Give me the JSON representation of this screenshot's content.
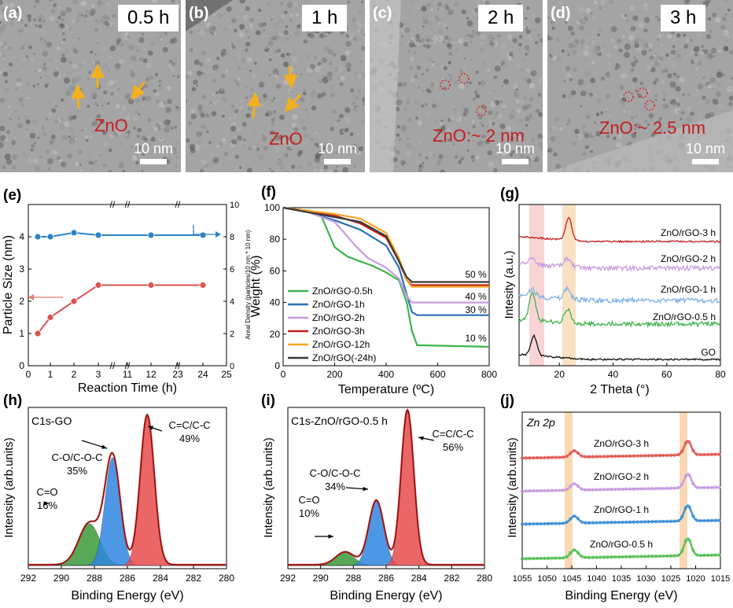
{
  "tem": [
    {
      "label": "(a)",
      "time": "0.5 h",
      "annotation": "ZnO",
      "scale": "10 nm"
    },
    {
      "label": "(b)",
      "time": "1 h",
      "annotation": "ZnO",
      "scale": "10 nm"
    },
    {
      "label": "(c)",
      "time": "2 h",
      "annotation": "ZnO:~ 2 nm",
      "scale": "10 nm"
    },
    {
      "label": "(d)",
      "time": "3 h",
      "annotation": "ZnO:~ 2.5 nm",
      "scale": "10 nm"
    }
  ],
  "chart_data": [
    {
      "id": "e",
      "type": "scatter",
      "label": "(e)",
      "xlabel": "Reaction Time (h)",
      "ylabel": "Particle Size (nm)",
      "ylabel2": "Areal Density (particles/10 nm * 10 nm)",
      "xticks": [
        "0",
        "1",
        "2",
        "3",
        "11",
        "12",
        "23",
        "24",
        "25"
      ],
      "yticks": [
        "0",
        "1",
        "2",
        "3",
        "4"
      ],
      "y2ticks": [
        "0",
        "2",
        "4",
        "6",
        "8",
        "10"
      ],
      "series": [
        {
          "name": "Particle Size",
          "color": "#d9534f",
          "x": [
            "0.5",
            "1",
            "2",
            "3",
            "12",
            "24"
          ],
          "y": [
            1.0,
            1.5,
            2.0,
            2.5,
            2.5,
            2.5
          ]
        },
        {
          "name": "Areal Density",
          "color": "#2c84c6",
          "x": [
            "0.5",
            "1",
            "2",
            "3",
            "12",
            "24"
          ],
          "y": [
            8.0,
            8.0,
            8.25,
            8.1,
            8.1,
            8.1
          ]
        }
      ]
    },
    {
      "id": "f",
      "type": "line",
      "label": "(f)",
      "xlabel": "Temperature (ºC)",
      "ylabel": "Weight (%)",
      "xlim": [
        0,
        800
      ],
      "ylim": [
        0,
        100
      ],
      "xticks": [
        "0",
        "200",
        "400",
        "600",
        "800"
      ],
      "yticks": [
        "0",
        "20",
        "40",
        "60",
        "80",
        "100"
      ],
      "series": [
        {
          "name": "ZnO/rGO-0.5h",
          "color": "#3cb44b",
          "x": [
            0,
            100,
            150,
            200,
            250,
            300,
            350,
            400,
            450,
            480,
            500,
            520,
            800
          ],
          "y": [
            100,
            97,
            94,
            75,
            69,
            66,
            63,
            59,
            54,
            40,
            22,
            13,
            12
          ]
        },
        {
          "name": "ZnO/rGO-1h",
          "color": "#2a6fb5",
          "x": [
            0,
            100,
            200,
            300,
            400,
            450,
            480,
            500,
            520,
            800
          ],
          "y": [
            100,
            97,
            92,
            86,
            76,
            62,
            45,
            34,
            32,
            32
          ]
        },
        {
          "name": "ZnO/rGO-2h",
          "color": "#c89be0",
          "x": [
            0,
            100,
            200,
            280,
            330,
            400,
            450,
            480,
            500,
            800
          ],
          "y": [
            100,
            97,
            91,
            76,
            68,
            62,
            55,
            44,
            40,
            40
          ]
        },
        {
          "name": "ZnO/rGO-3h",
          "color": "#c0201e",
          "x": [
            0,
            100,
            200,
            300,
            400,
            450,
            480,
            500,
            800
          ],
          "y": [
            100,
            98,
            95,
            90,
            81,
            66,
            54,
            51,
            51
          ]
        },
        {
          "name": "ZnO/rGO-12h",
          "color": "#f5a623",
          "x": [
            0,
            100,
            200,
            300,
            400,
            450,
            480,
            500,
            800
          ],
          "y": [
            100,
            98,
            96,
            93,
            84,
            68,
            54,
            50,
            50
          ]
        },
        {
          "name": "ZnO/rGO(-24h)",
          "color": "#3a3a3a",
          "x": [
            0,
            100,
            200,
            300,
            400,
            450,
            480,
            500,
            800
          ],
          "y": [
            100,
            97,
            94,
            91,
            82,
            66,
            56,
            53,
            53
          ]
        }
      ],
      "annotations": [
        "50 %",
        "40 %",
        "30 %",
        "10 %"
      ]
    },
    {
      "id": "g",
      "type": "line",
      "label": "(g)",
      "xlabel": "2 Theta (°)",
      "ylabel": "Intesity (a.u.)",
      "xlim": [
        5,
        80
      ],
      "xticks": [
        "20",
        "40",
        "60",
        "80"
      ],
      "series": [
        {
          "name": "ZnO/rGO-3 h",
          "color": "#c0201e",
          "peaks": [
            [
              23.5,
              1.0
            ]
          ]
        },
        {
          "name": "ZnO/rGO-2 h",
          "color": "#c89be0",
          "peaks": [
            [
              10,
              0.3
            ],
            [
              23,
              0.4
            ]
          ]
        },
        {
          "name": "ZnO/rGO-1 h",
          "color": "#7fb2e5",
          "peaks": [
            [
              10,
              0.35
            ],
            [
              23,
              0.5
            ]
          ]
        },
        {
          "name": "ZnO/rGO-0.5 h",
          "color": "#3cb44b",
          "peaks": [
            [
              10,
              1.2
            ],
            [
              23,
              0.6
            ]
          ]
        },
        {
          "name": "GO",
          "color": "#111111",
          "peaks": [
            [
              10.5,
              0.9
            ]
          ]
        }
      ]
    },
    {
      "id": "h",
      "type": "area",
      "label": "(h)",
      "title": "C1s-GO",
      "xlabel": "Binding Energy (eV)",
      "ylabel": "Intensity (arb.units)",
      "xlim": [
        292,
        280
      ],
      "xticks": [
        "292",
        "290",
        "288",
        "286",
        "284",
        "282",
        "280"
      ],
      "components": [
        {
          "name": "C=O",
          "pct": "16%",
          "center": 288.3,
          "height": 0.26,
          "width": 0.9,
          "color": "#3a9a3a"
        },
        {
          "name": "C-O/C-O-C",
          "pct": "35%",
          "center": 286.9,
          "height": 0.67,
          "width": 0.65,
          "color": "#2f86e0"
        },
        {
          "name": "C=C/C-C",
          "pct": "49%",
          "center": 284.8,
          "height": 0.93,
          "width": 0.6,
          "color": "#e84c4c"
        }
      ]
    },
    {
      "id": "i",
      "type": "area",
      "label": "(i)",
      "title": "C1s-ZnO/rGO-0.5 h",
      "xlabel": "Binding Energy (eV)",
      "ylabel": "Intensity (arb.units)",
      "xlim": [
        292,
        280
      ],
      "xticks": [
        "292",
        "290",
        "288",
        "286",
        "284",
        "282",
        "280"
      ],
      "components": [
        {
          "name": "C=O",
          "pct": "10%",
          "center": 288.5,
          "height": 0.08,
          "width": 0.8,
          "color": "#3a9a3a"
        },
        {
          "name": "C-O/C-O-C",
          "pct": "34%",
          "center": 286.6,
          "height": 0.4,
          "width": 0.65,
          "color": "#2f86e0"
        },
        {
          "name": "C=C/C-C",
          "pct": "56%",
          "center": 284.7,
          "height": 0.96,
          "width": 0.55,
          "color": "#e84c4c"
        }
      ]
    },
    {
      "id": "j",
      "type": "scatter",
      "label": "(j)",
      "title": "Zn 2p",
      "xlabel": "Binding Energy (eV)",
      "ylabel": "Intensity (arb.units)",
      "xlim": [
        1055,
        1015
      ],
      "xticks": [
        "1055",
        "1050",
        "1045",
        "1040",
        "1035",
        "1030",
        "1025",
        "1020",
        "1015"
      ],
      "peaks": [
        1044.5,
        1021.6
      ],
      "series": [
        {
          "name": "ZnO/rGO-3 h",
          "color": "#e25b53"
        },
        {
          "name": "ZnO/rGO-2 h",
          "color": "#c89be0"
        },
        {
          "name": "ZnO/rGO-1 h",
          "color": "#3f8fd8"
        },
        {
          "name": "ZnO/rGO-0.5 h",
          "color": "#59c159"
        }
      ]
    }
  ]
}
